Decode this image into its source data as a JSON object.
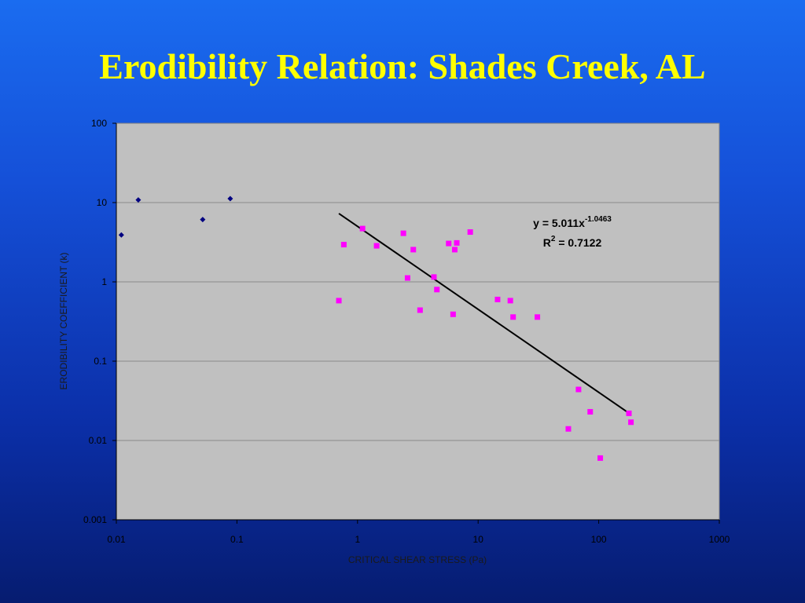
{
  "slide": {
    "title": "Erodibility Relation: Shades Creek, AL"
  },
  "chart_data": {
    "type": "scatter",
    "xscale": "log",
    "yscale": "log",
    "xlim": [
      0.01,
      1000
    ],
    "ylim": [
      0.001,
      100
    ],
    "xlabel": "CRITICAL SHEAR STRESS (Pa)",
    "ylabel": "ERODIBILITY COEFFICIENT (k)",
    "x_ticks": [
      "0.01",
      "0.1",
      "1",
      "10",
      "100",
      "1000"
    ],
    "y_ticks": [
      "0.001",
      "0.01",
      "0.1",
      "1",
      "10",
      "100"
    ],
    "grid": "horizontal",
    "legend": "none",
    "background_color": "#c0c0c0",
    "series": [
      {
        "marker": "diamond",
        "color": "#000080",
        "points": [
          [
            0.011,
            3.9
          ],
          [
            0.0152,
            10.8
          ],
          [
            0.052,
            6.1
          ],
          [
            0.088,
            11.2
          ]
        ]
      },
      {
        "marker": "square",
        "color": "#ff00ff",
        "points": [
          [
            0.7,
            0.58
          ],
          [
            0.77,
            2.95
          ],
          [
            1.1,
            4.7
          ],
          [
            1.44,
            2.85
          ],
          [
            2.4,
            4.1
          ],
          [
            2.6,
            1.12
          ],
          [
            2.9,
            2.55
          ],
          [
            3.3,
            0.44
          ],
          [
            4.3,
            1.15
          ],
          [
            4.55,
            0.8
          ],
          [
            5.7,
            3.05
          ],
          [
            6.2,
            0.39
          ],
          [
            6.4,
            2.55
          ],
          [
            6.65,
            3.1
          ],
          [
            8.6,
            4.25
          ],
          [
            14.5,
            0.6
          ],
          [
            18.5,
            0.58
          ],
          [
            19.5,
            0.36
          ],
          [
            31,
            0.36
          ],
          [
            56,
            0.014
          ],
          [
            68,
            0.044
          ],
          [
            85,
            0.023
          ],
          [
            103,
            0.006
          ],
          [
            178,
            0.022
          ],
          [
            185,
            0.017
          ]
        ]
      }
    ],
    "trendline": {
      "type": "power",
      "a": 5.011,
      "b": -1.0463,
      "x_range": [
        0.7,
        185
      ],
      "color": "#000000",
      "equation_text": "y = 5.011x",
      "equation_exponent": "-1.0463",
      "r2_prefix": "R",
      "r2_superscript": "2",
      "r2_suffix": " = 0.7122"
    }
  }
}
